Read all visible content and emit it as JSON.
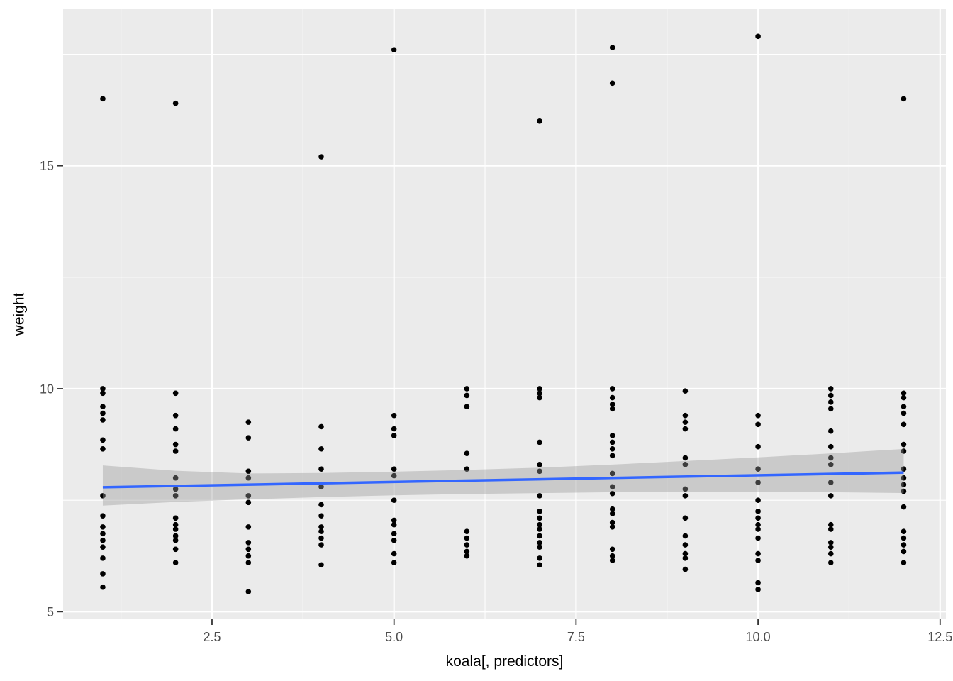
{
  "figure": {
    "xlabel": "koala[, predictors]",
    "ylabel": "weight"
  },
  "chart_data": {
    "type": "scatter",
    "title": "",
    "xlabel": "koala[, predictors]",
    "ylabel": "weight",
    "xlim": [
      0.455,
      12.58
    ],
    "ylim": [
      4.83,
      18.51
    ],
    "grid": true,
    "legend_position": "none",
    "x_ticks": {
      "values": [
        2.5,
        5.0,
        7.5,
        10.0,
        12.5
      ],
      "labels": [
        "2.5",
        "5.0",
        "7.5",
        "10.0",
        "12.5"
      ]
    },
    "y_ticks": {
      "values": [
        5,
        10,
        15
      ],
      "labels": [
        "5",
        "10",
        "15"
      ]
    },
    "x_minor_gridlines": [
      1.25,
      3.75,
      6.25,
      8.75,
      11.25
    ],
    "y_minor_gridlines": [
      7.5,
      12.5,
      17.5
    ],
    "colors": {
      "panel_background": "#EBEBEB",
      "gridline": "#FFFFFF",
      "point": "#000000",
      "smooth_line": "#3366FF",
      "ribbon": "#999999",
      "ribbon_opacity": 0.4,
      "tick_text": "#4D4D4D",
      "tick_mark": "#333333"
    },
    "series": [
      {
        "x": 1,
        "weights": [
          16.5,
          10.0,
          9.9,
          9.6,
          9.45,
          9.3,
          8.85,
          8.65,
          7.6,
          7.15,
          6.9,
          6.75,
          6.6,
          6.45,
          6.2,
          5.85,
          5.55
        ]
      },
      {
        "x": 2,
        "weights": [
          16.4,
          9.9,
          9.4,
          9.1,
          8.75,
          8.6,
          8.0,
          7.75,
          7.6,
          7.1,
          6.95,
          6.85,
          6.7,
          6.6,
          6.4,
          6.1
        ]
      },
      {
        "x": 3,
        "weights": [
          9.25,
          8.9,
          8.15,
          8.0,
          7.6,
          7.45,
          6.9,
          6.55,
          6.4,
          6.25,
          6.1,
          5.45
        ]
      },
      {
        "x": 4,
        "weights": [
          15.2,
          9.15,
          8.65,
          8.2,
          7.8,
          7.4,
          7.15,
          6.9,
          6.8,
          6.65,
          6.5,
          6.05
        ]
      },
      {
        "x": 5,
        "weights": [
          17.6,
          9.4,
          9.1,
          8.95,
          8.2,
          8.05,
          7.5,
          7.05,
          6.95,
          6.75,
          6.6,
          6.3,
          6.1
        ]
      },
      {
        "x": 6,
        "weights": [
          10.0,
          9.85,
          9.6,
          8.55,
          8.2,
          6.8,
          6.65,
          6.5,
          6.35,
          6.25
        ]
      },
      {
        "x": 7,
        "weights": [
          16.0,
          10.0,
          9.9,
          9.8,
          8.8,
          8.3,
          8.15,
          7.6,
          7.25,
          7.1,
          6.95,
          6.85,
          6.7,
          6.55,
          6.45,
          6.2,
          6.05
        ]
      },
      {
        "x": 8,
        "weights": [
          17.65,
          16.85,
          10.0,
          9.8,
          9.65,
          9.55,
          8.95,
          8.8,
          8.65,
          8.5,
          8.1,
          7.8,
          7.65,
          7.3,
          7.2,
          7.0,
          6.9,
          6.4,
          6.25,
          6.15
        ]
      },
      {
        "x": 9,
        "weights": [
          9.95,
          9.4,
          9.25,
          9.1,
          8.45,
          8.3,
          7.75,
          7.6,
          7.1,
          6.7,
          6.5,
          6.3,
          6.2,
          5.95
        ]
      },
      {
        "x": 10,
        "weights": [
          17.9,
          9.4,
          9.2,
          8.7,
          8.2,
          7.9,
          7.5,
          7.25,
          7.1,
          6.95,
          6.85,
          6.65,
          6.3,
          6.15,
          5.65,
          5.5
        ]
      },
      {
        "x": 11,
        "weights": [
          10.0,
          9.85,
          9.7,
          9.55,
          9.05,
          8.7,
          8.45,
          8.3,
          7.9,
          7.6,
          6.95,
          6.85,
          6.55,
          6.45,
          6.3,
          6.1
        ]
      },
      {
        "x": 12,
        "weights": [
          16.5,
          9.9,
          9.8,
          9.6,
          9.45,
          9.2,
          8.75,
          8.6,
          8.2,
          8.0,
          7.85,
          7.7,
          7.35,
          6.8,
          6.65,
          6.5,
          6.35,
          6.1
        ]
      }
    ],
    "smooth_line": {
      "x": [
        1,
        12
      ],
      "y": [
        7.79,
        8.12
      ]
    },
    "ribbon": {
      "x": [
        1,
        2,
        3,
        4,
        5,
        6,
        7,
        8,
        9,
        10,
        11,
        12
      ],
      "upper": [
        8.28,
        8.16,
        8.1,
        8.11,
        8.14,
        8.18,
        8.23,
        8.3,
        8.38,
        8.46,
        8.55,
        8.65
      ],
      "lower": [
        7.38,
        7.46,
        7.52,
        7.57,
        7.61,
        7.64,
        7.66,
        7.68,
        7.69,
        7.69,
        7.68,
        7.66
      ]
    }
  }
}
